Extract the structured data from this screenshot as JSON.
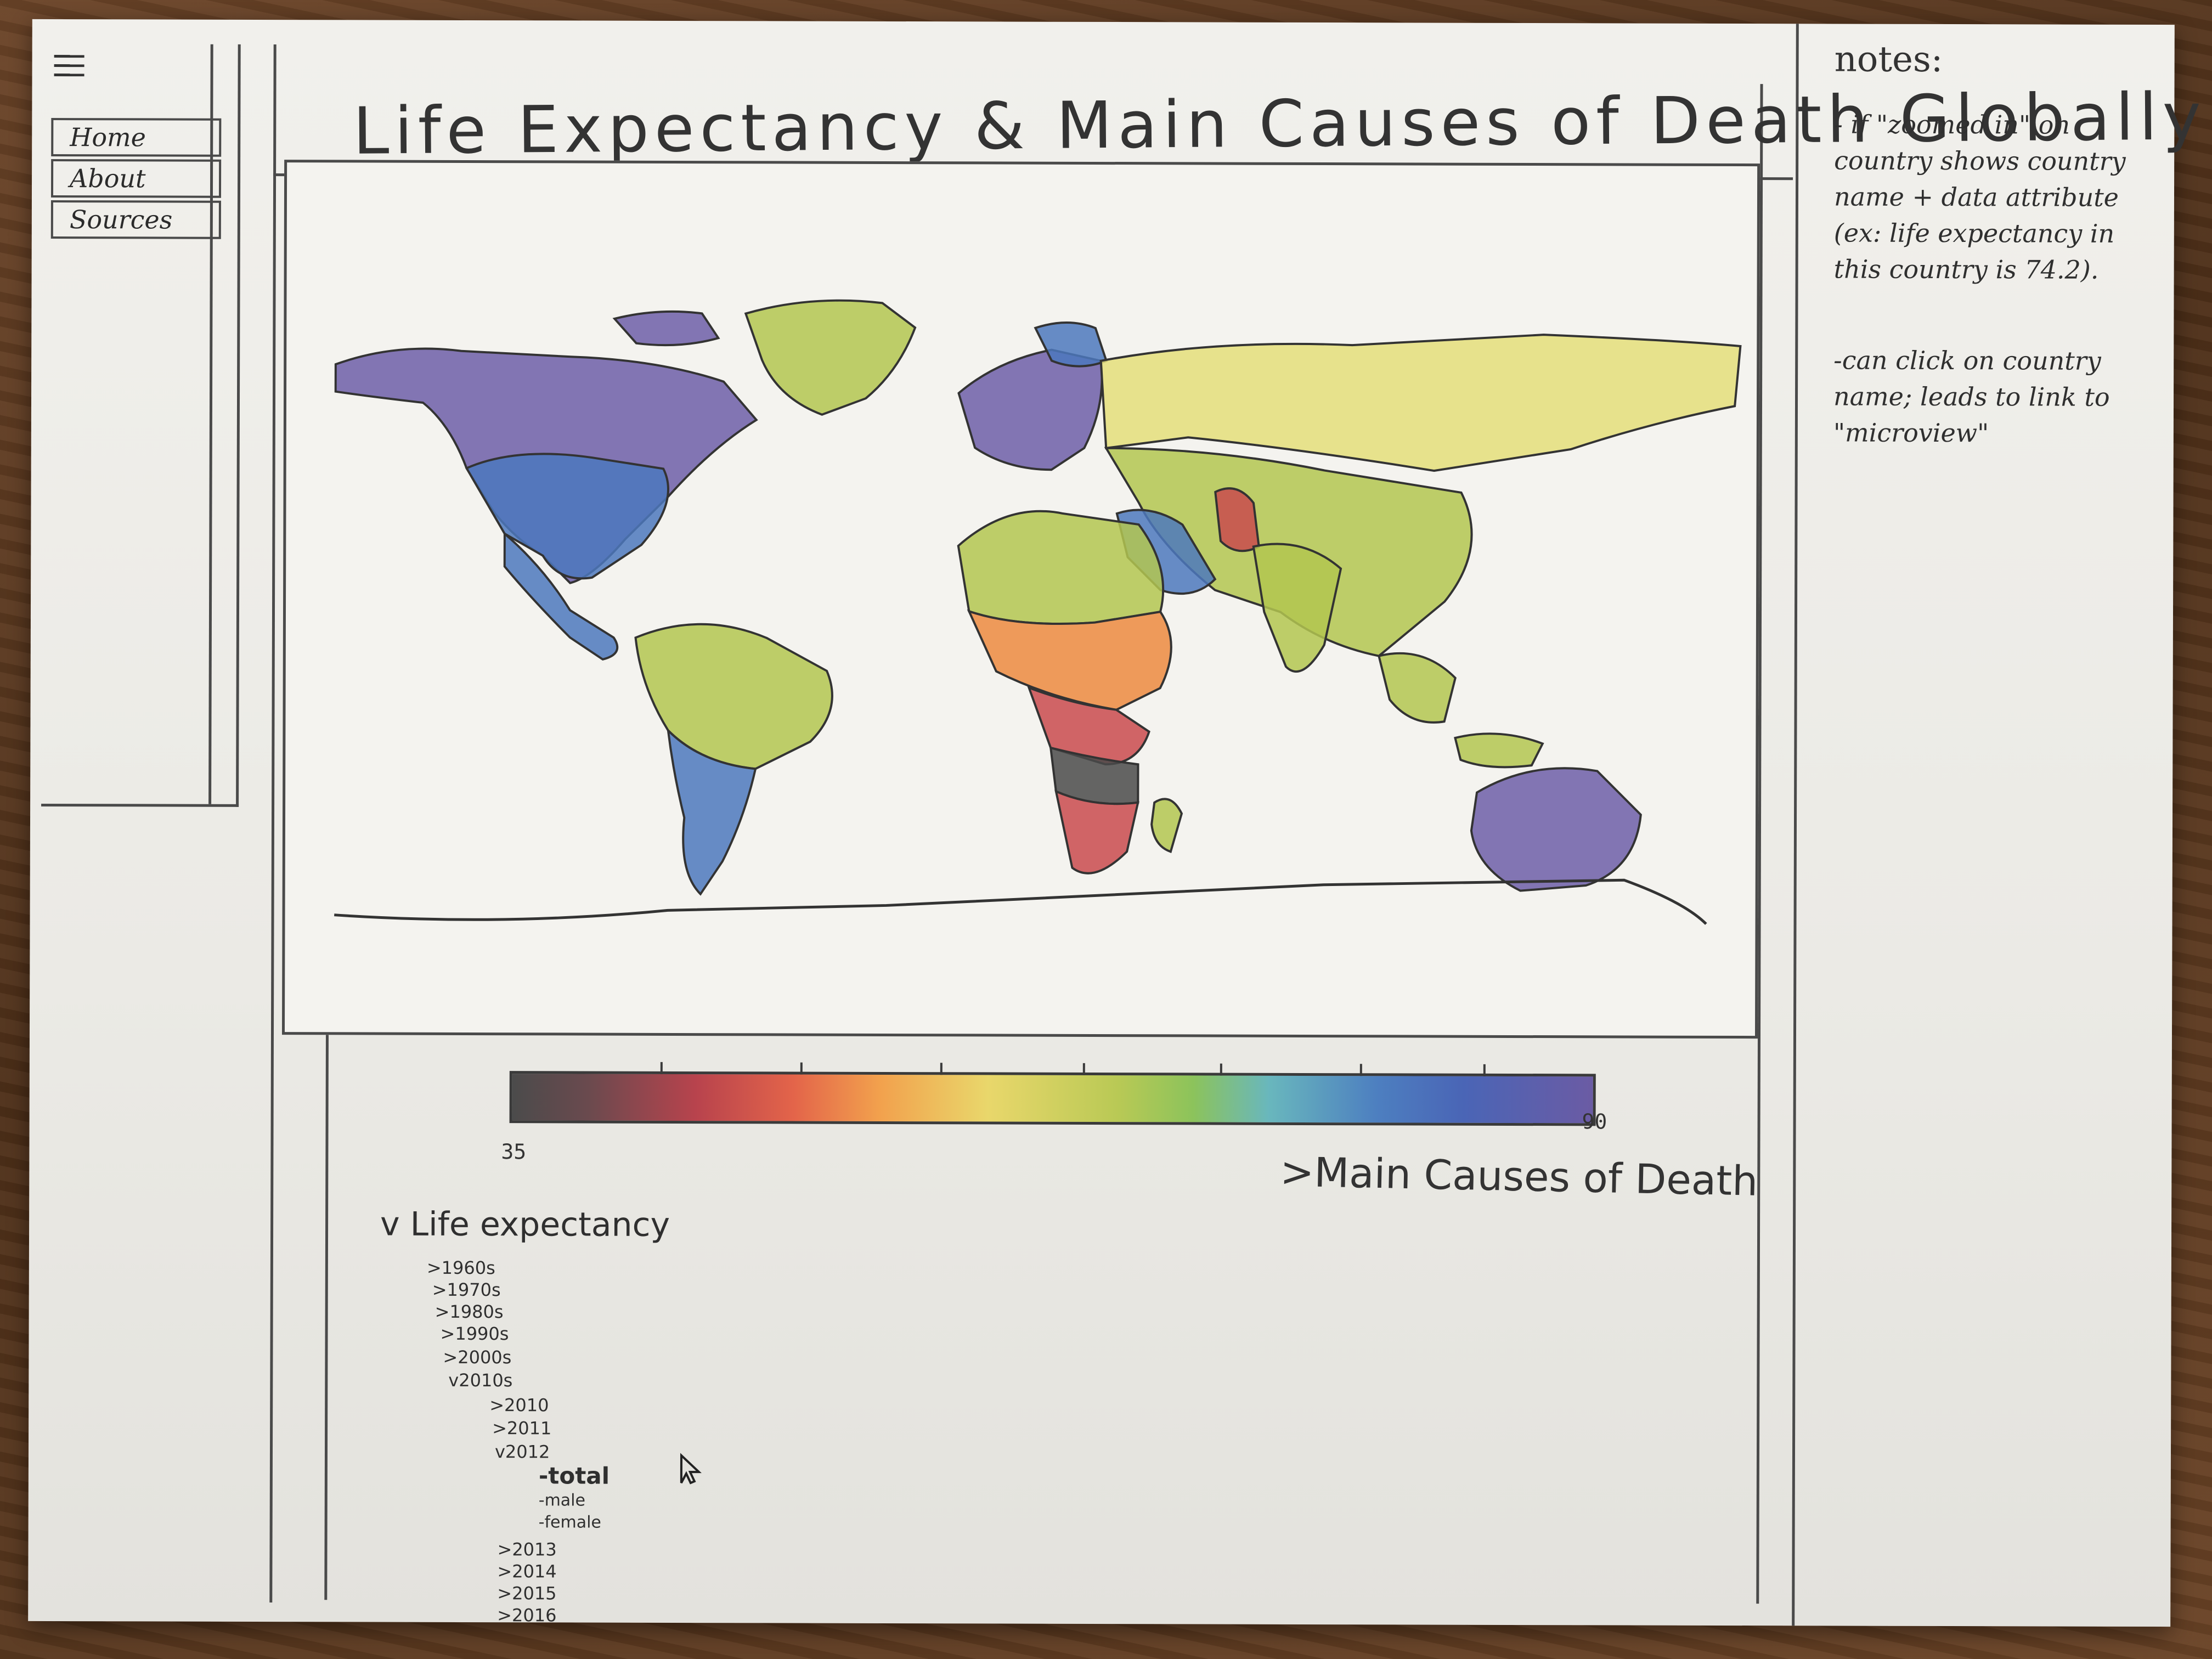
{
  "nav": {
    "menu_icon": "hamburger-menu-icon",
    "items": [
      {
        "label": "Home"
      },
      {
        "label": "About"
      },
      {
        "label": "Sources"
      }
    ]
  },
  "header": {
    "title": "Life Expectancy & Main Causes of Death Globally"
  },
  "map": {
    "colors": {
      "purple": "#6d5ea8",
      "blue": "#4c78bd",
      "green": "#b3c650",
      "yellow": "#e4de7a",
      "orange": "#ec8a3f",
      "red": "#c94a4e",
      "black": "#4a4a4a"
    }
  },
  "legend": {
    "min_label": "35",
    "max_label": "90"
  },
  "causes_toggle": {
    "label": ">Main Causes of Death"
  },
  "tree": {
    "root_label": "v Life expectancy",
    "decades": [
      {
        "label": ">1960s"
      },
      {
        "label": ">1970s"
      },
      {
        "label": ">1980s"
      },
      {
        "label": ">1990s"
      },
      {
        "label": ">2000s"
      },
      {
        "label": "v2010s"
      }
    ],
    "years_before": [
      {
        "label": ">2010"
      },
      {
        "label": ">2011"
      },
      {
        "label": "v2012"
      }
    ],
    "options": [
      {
        "label": "-total"
      },
      {
        "label": "-male"
      },
      {
        "label": "-female"
      }
    ],
    "years_after": [
      {
        "label": ">2013"
      },
      {
        "label": ">2014"
      },
      {
        "label": ">2015"
      },
      {
        "label": ">2016"
      }
    ],
    "cursor_icon": "arrow-cursor-icon"
  },
  "notes": {
    "title": "notes:",
    "items": [
      {
        "text": "- if \"zoomed in\" on country shows country name + data attribute (ex: life expectancy in this country is 74.2)."
      },
      {
        "text": "-can click on country name; leads to link to \"microview\""
      }
    ]
  }
}
